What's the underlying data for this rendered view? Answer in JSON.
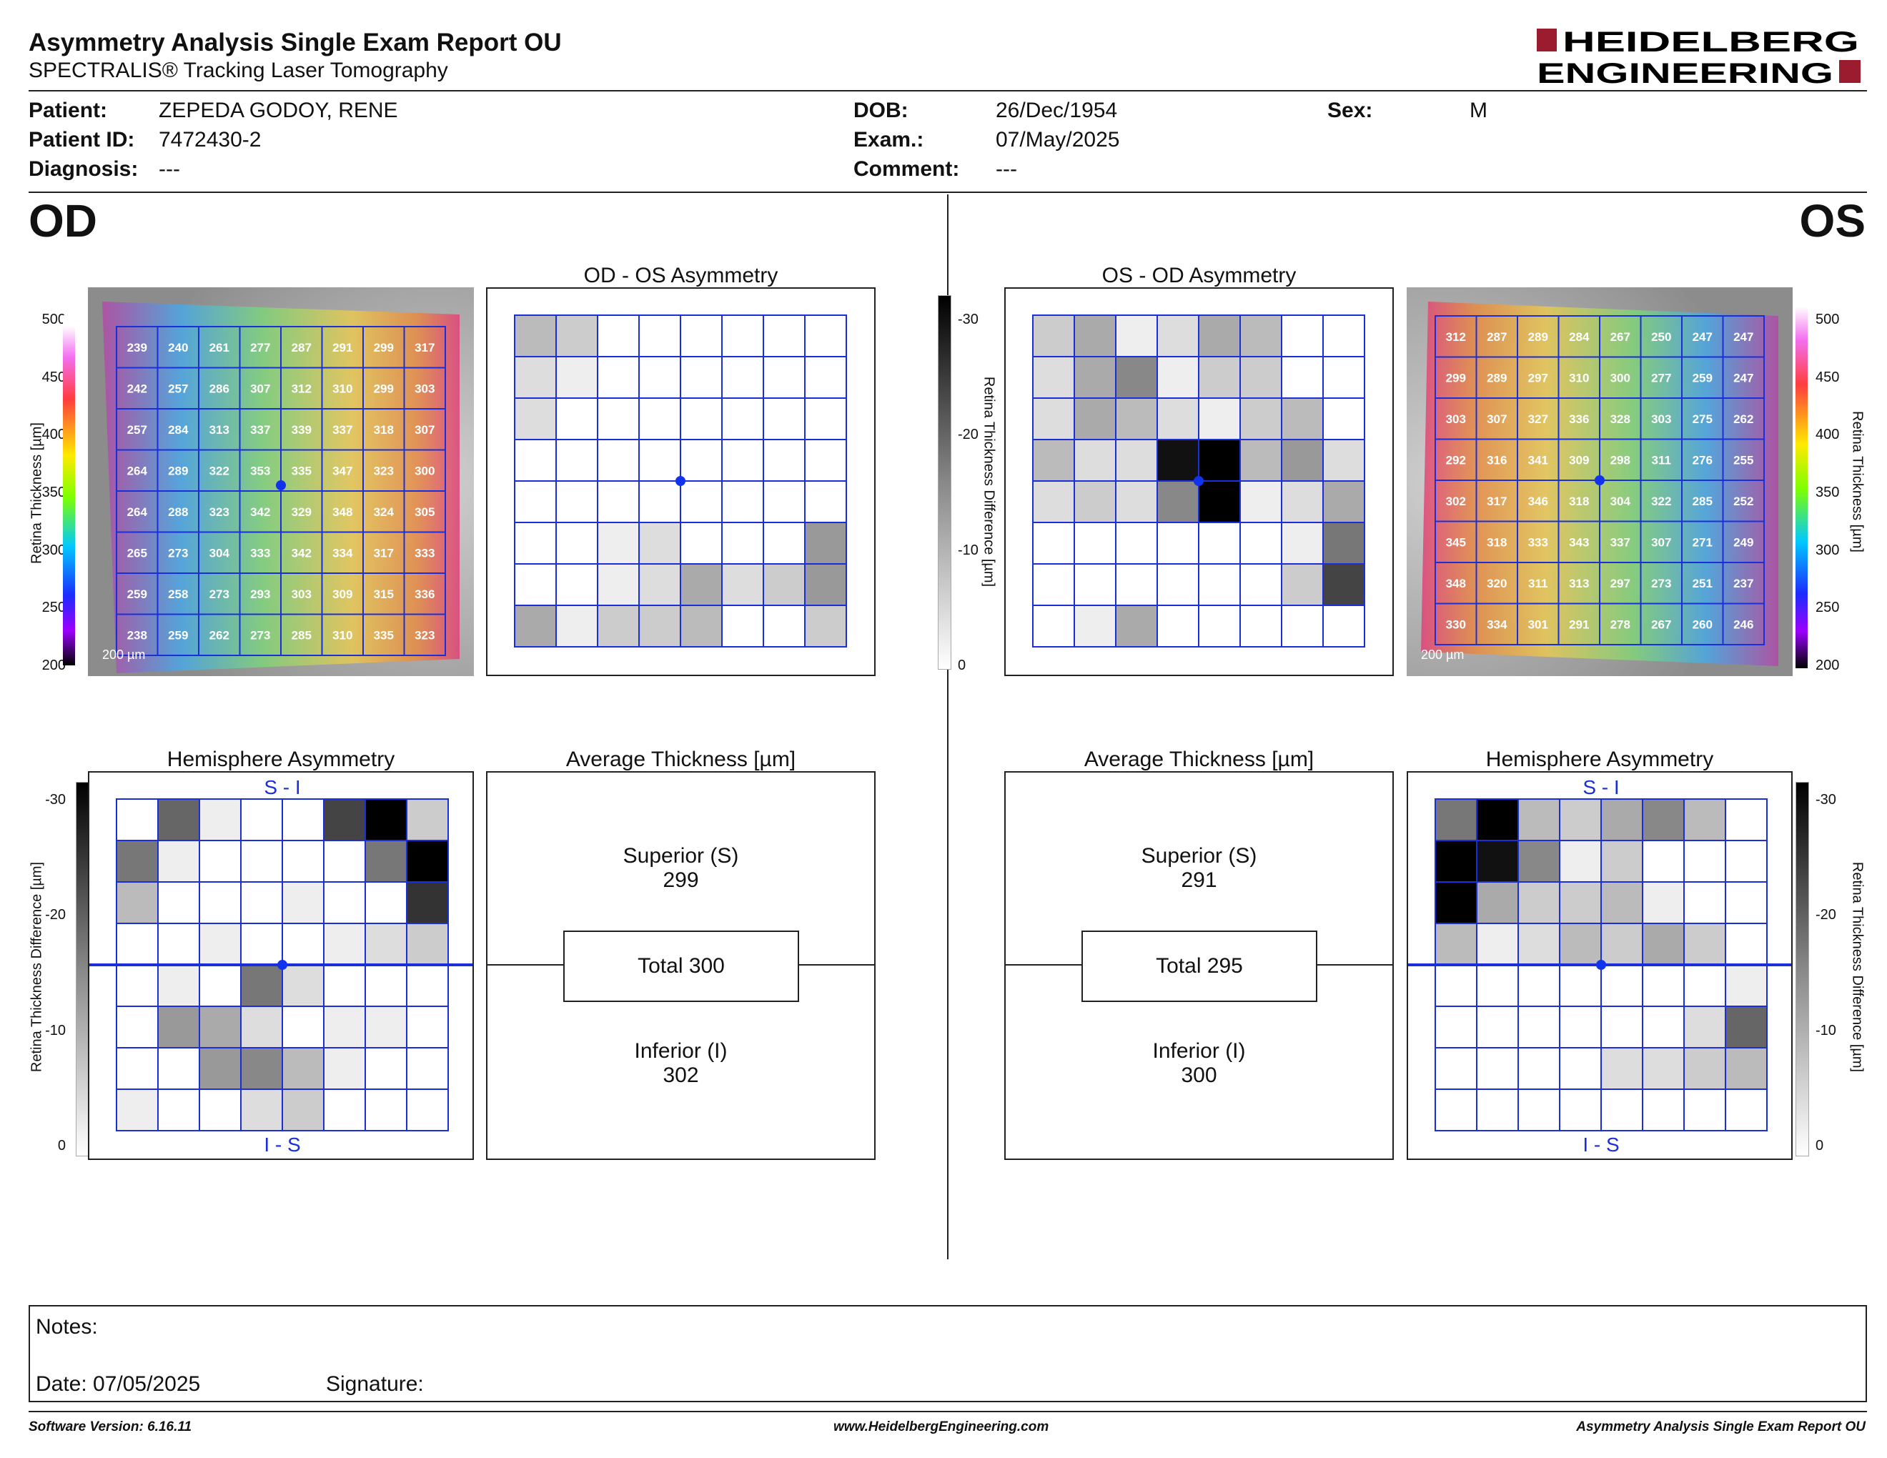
{
  "header": {
    "title": "Asymmetry Analysis Single Exam Report OU",
    "subtitle": "SPECTRALIS® Tracking Laser Tomography",
    "logo_line1": "HEIDELBERG",
    "logo_line2": "ENGINEERING",
    "logo_color": "#9b1c2e"
  },
  "patient": {
    "patient_label": "Patient:",
    "patient_value": "ZEPEDA GODOY, RENE",
    "id_label": "Patient ID:",
    "id_value": "7472430-2",
    "diagnosis_label": "Diagnosis:",
    "diagnosis_value": "---",
    "dob_label": "DOB:",
    "dob_value": "26/Dec/1954",
    "exam_label": "Exam.:",
    "exam_value": "07/May/2025",
    "comment_label": "Comment:",
    "comment_value": "---",
    "sex_label": "Sex:",
    "sex_value": "M"
  },
  "od": {
    "eye": "OD",
    "thickness_scale": [
      "500",
      "450",
      "400",
      "350",
      "300",
      "250",
      "200"
    ],
    "thickness_axis": "Retina  Thickness [µm]",
    "scale_bar": "200 µm",
    "grid": [
      [
        239,
        240,
        261,
        277,
        287,
        291,
        299,
        317
      ],
      [
        242,
        257,
        286,
        307,
        312,
        310,
        299,
        303
      ],
      [
        257,
        284,
        313,
        337,
        339,
        337,
        318,
        307
      ],
      [
        264,
        289,
        322,
        353,
        335,
        347,
        323,
        300
      ],
      [
        264,
        288,
        323,
        342,
        329,
        348,
        324,
        305
      ],
      [
        265,
        273,
        304,
        333,
        342,
        334,
        317,
        333
      ],
      [
        259,
        258,
        273,
        293,
        303,
        309,
        315,
        336
      ],
      [
        238,
        259,
        262,
        273,
        285,
        310,
        335,
        323
      ]
    ],
    "asym_title": "OD - OS Asymmetry",
    "asym": [
      [
        4,
        3,
        0,
        0,
        0,
        0,
        0,
        0
      ],
      [
        2,
        1,
        0,
        0,
        0,
        0,
        0,
        0
      ],
      [
        2,
        0,
        0,
        0,
        0,
        0,
        0,
        0
      ],
      [
        0,
        0,
        0,
        0,
        0,
        0,
        0,
        0
      ],
      [
        0,
        0,
        0,
        0,
        0,
        0,
        0,
        0
      ],
      [
        0,
        0,
        1,
        2,
        0,
        0,
        0,
        6
      ],
      [
        0,
        0,
        1,
        2,
        5,
        2,
        3,
        6
      ],
      [
        5,
        1,
        3,
        3,
        4,
        0,
        0,
        3
      ]
    ],
    "diff_scale": [
      "-30",
      "-20",
      "-10",
      "0"
    ],
    "diff_axis": "Retina Thickness Difference [µm]",
    "hemi_title": "Hemisphere Asymmetry",
    "hemi_top": "S - I",
    "hemi_bottom": "I - S",
    "hemi": [
      [
        0,
        9,
        1,
        0,
        0,
        11,
        15,
        3
      ],
      [
        8,
        1,
        0,
        0,
        0,
        0,
        8,
        15
      ],
      [
        4,
        0,
        0,
        0,
        1,
        0,
        0,
        12
      ],
      [
        0,
        0,
        1,
        0,
        0,
        1,
        2,
        3
      ],
      [
        0,
        1,
        0,
        8,
        2,
        0,
        0,
        0
      ],
      [
        0,
        6,
        5,
        2,
        0,
        1,
        1,
        0
      ],
      [
        0,
        0,
        6,
        7,
        4,
        1,
        0,
        0
      ],
      [
        1,
        0,
        0,
        2,
        3,
        0,
        0,
        0
      ]
    ],
    "avg_title": "Average Thickness [µm]",
    "superior_label": "Superior (S)",
    "superior_value": "299",
    "total": "Total 300",
    "inferior_label": "Inferior (I)",
    "inferior_value": "302"
  },
  "os": {
    "eye": "OS",
    "thickness_scale": [
      "500",
      "450",
      "400",
      "350",
      "300",
      "250",
      "200"
    ],
    "thickness_axis": "Retina  Thickness [µm]",
    "scale_bar": "200 µm",
    "grid": [
      [
        312,
        287,
        289,
        284,
        267,
        250,
        247,
        247
      ],
      [
        299,
        289,
        297,
        310,
        300,
        277,
        259,
        247
      ],
      [
        303,
        307,
        327,
        336,
        328,
        303,
        275,
        262
      ],
      [
        292,
        316,
        341,
        309,
        298,
        311,
        276,
        255
      ],
      [
        302,
        317,
        346,
        318,
        304,
        322,
        285,
        252
      ],
      [
        345,
        318,
        333,
        343,
        337,
        307,
        271,
        249
      ],
      [
        348,
        320,
        311,
        313,
        297,
        273,
        251,
        237
      ],
      [
        330,
        334,
        301,
        291,
        278,
        267,
        260,
        246
      ]
    ],
    "asym_title": "OS - OD Asymmetry",
    "asym": [
      [
        3,
        5,
        1,
        2,
        5,
        4,
        0,
        0
      ],
      [
        2,
        5,
        7,
        1,
        3,
        3,
        0,
        0
      ],
      [
        2,
        5,
        4,
        2,
        1,
        3,
        4,
        0
      ],
      [
        4,
        2,
        2,
        14,
        15,
        4,
        6,
        2
      ],
      [
        2,
        3,
        2,
        7,
        15,
        1,
        2,
        5
      ],
      [
        0,
        0,
        0,
        0,
        0,
        0,
        1,
        8
      ],
      [
        0,
        0,
        0,
        0,
        0,
        0,
        3,
        11
      ],
      [
        0,
        1,
        5,
        0,
        0,
        0,
        0,
        0
      ]
    ],
    "diff_scale": [
      "-30",
      "-20",
      "-10",
      "0"
    ],
    "diff_axis": "Retina Thickness Difference [µm]",
    "hemi_title": "Hemisphere Asymmetry",
    "hemi_top": "S - I",
    "hemi_bottom": "I - S",
    "hemi": [
      [
        8,
        15,
        4,
        3,
        5,
        7,
        4,
        0
      ],
      [
        15,
        14,
        7,
        1,
        3,
        0,
        0,
        0
      ],
      [
        15,
        5,
        3,
        3,
        4,
        1,
        0,
        0
      ],
      [
        4,
        1,
        2,
        4,
        3,
        5,
        3,
        0
      ],
      [
        0,
        0,
        0,
        0,
        0,
        0,
        0,
        1
      ],
      [
        0,
        0,
        0,
        0,
        0,
        0,
        2,
        9
      ],
      [
        0,
        0,
        0,
        0,
        2,
        2,
        3,
        4
      ],
      [
        0,
        0,
        0,
        0,
        0,
        0,
        0,
        0
      ]
    ],
    "avg_title": "Average Thickness [µm]",
    "superior_label": "Superior (S)",
    "superior_value": "291",
    "total": "Total 295",
    "inferior_label": "Inferior (I)",
    "inferior_value": "300"
  },
  "notes": {
    "notes_label": "Notes:",
    "date_label": "Date: 07/05/2025",
    "signature_label": "Signature:"
  },
  "footer": {
    "software": "Software Version: 6.16.11",
    "website": "www.HeidelbergEngineering.com",
    "report": "Asymmetry Analysis Single Exam Report OU"
  }
}
